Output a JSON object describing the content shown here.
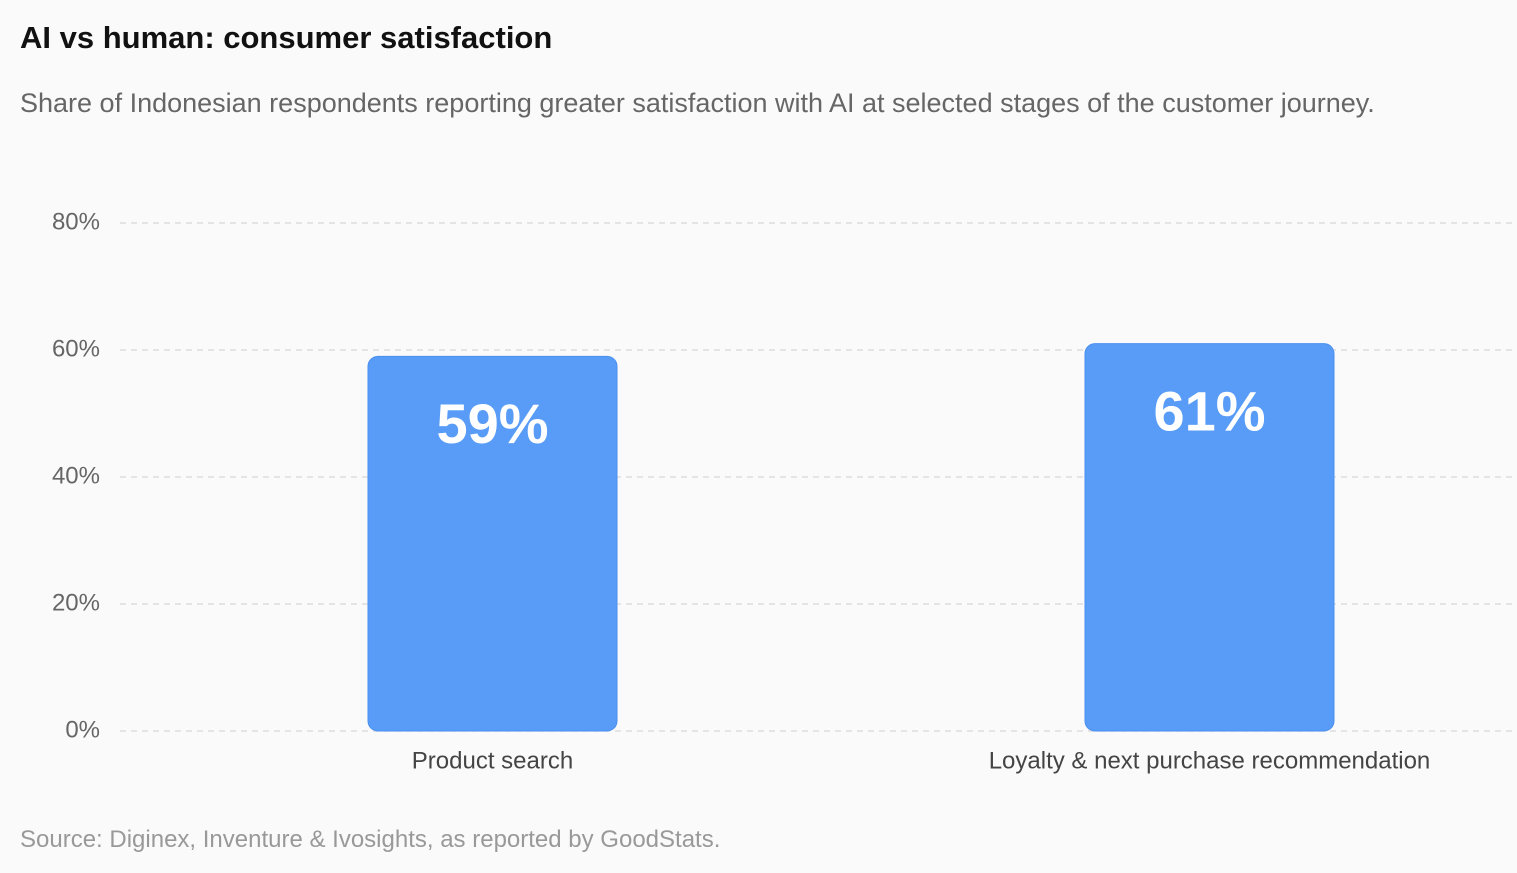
{
  "chart_data": {
    "type": "bar",
    "title": "AI vs human: consumer satisfaction",
    "subtitle": "Share of Indonesian respondents reporting greater satisfaction with AI at selected stages of the customer journey.",
    "categories": [
      "Product search",
      "Loyalty & next purchase recommendation"
    ],
    "values": [
      59,
      61
    ],
    "value_labels": [
      "59%",
      "61%"
    ],
    "color": "#589cf7",
    "ylim": [
      0,
      80
    ],
    "yticks": [
      {
        "value": 0,
        "label": "0%"
      },
      {
        "value": 20,
        "label": "20%"
      },
      {
        "value": 40,
        "label": "40%"
      },
      {
        "value": 60,
        "label": "60%"
      },
      {
        "value": 80,
        "label": "80%"
      }
    ],
    "grid": true,
    "source": "Source: Diginex, Inventure & Ivosights, as reported by GoodStats."
  }
}
